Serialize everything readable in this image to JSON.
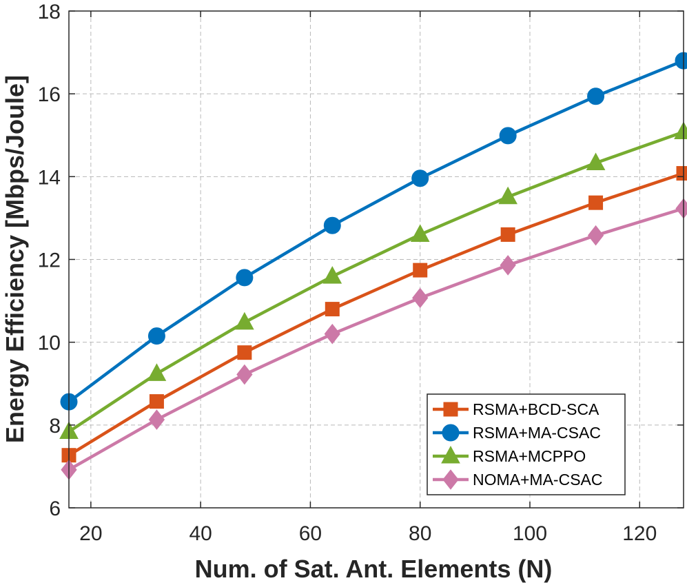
{
  "chart_data": {
    "type": "line",
    "title": "",
    "xlabel": "Num. of Sat. Ant. Elements (N)",
    "ylabel": "Energy Efficiency [Mbps/Joule]",
    "xlim": [
      16,
      128
    ],
    "ylim": [
      6,
      18
    ],
    "xticks": [
      20,
      40,
      60,
      80,
      100,
      120
    ],
    "yticks": [
      6,
      8,
      10,
      12,
      14,
      16,
      18
    ],
    "grid": true,
    "legend_position": "bottom-right",
    "x": [
      16,
      32,
      48,
      64,
      80,
      96,
      112,
      128
    ],
    "series": [
      {
        "name": "RSMA+BCD-SCA",
        "color": "#D95319",
        "marker": "square",
        "values": [
          7.27,
          8.57,
          9.75,
          10.8,
          11.74,
          12.6,
          13.37,
          14.08
        ]
      },
      {
        "name": "RSMA+MA-CSAC",
        "color": "#0072BD",
        "marker": "circle",
        "values": [
          8.56,
          10.15,
          11.56,
          12.82,
          13.96,
          14.99,
          15.94,
          16.8
        ]
      },
      {
        "name": "RSMA+MCPPO",
        "color": "#77AC30",
        "marker": "triangle",
        "values": [
          7.84,
          9.24,
          10.48,
          11.59,
          12.6,
          13.51,
          14.33,
          15.08
        ]
      },
      {
        "name": "NOMA+MA-CSAC",
        "color": "#CC79A7",
        "marker": "diamond",
        "values": [
          6.92,
          8.13,
          9.22,
          10.2,
          11.07,
          11.86,
          12.58,
          13.23
        ]
      }
    ]
  }
}
